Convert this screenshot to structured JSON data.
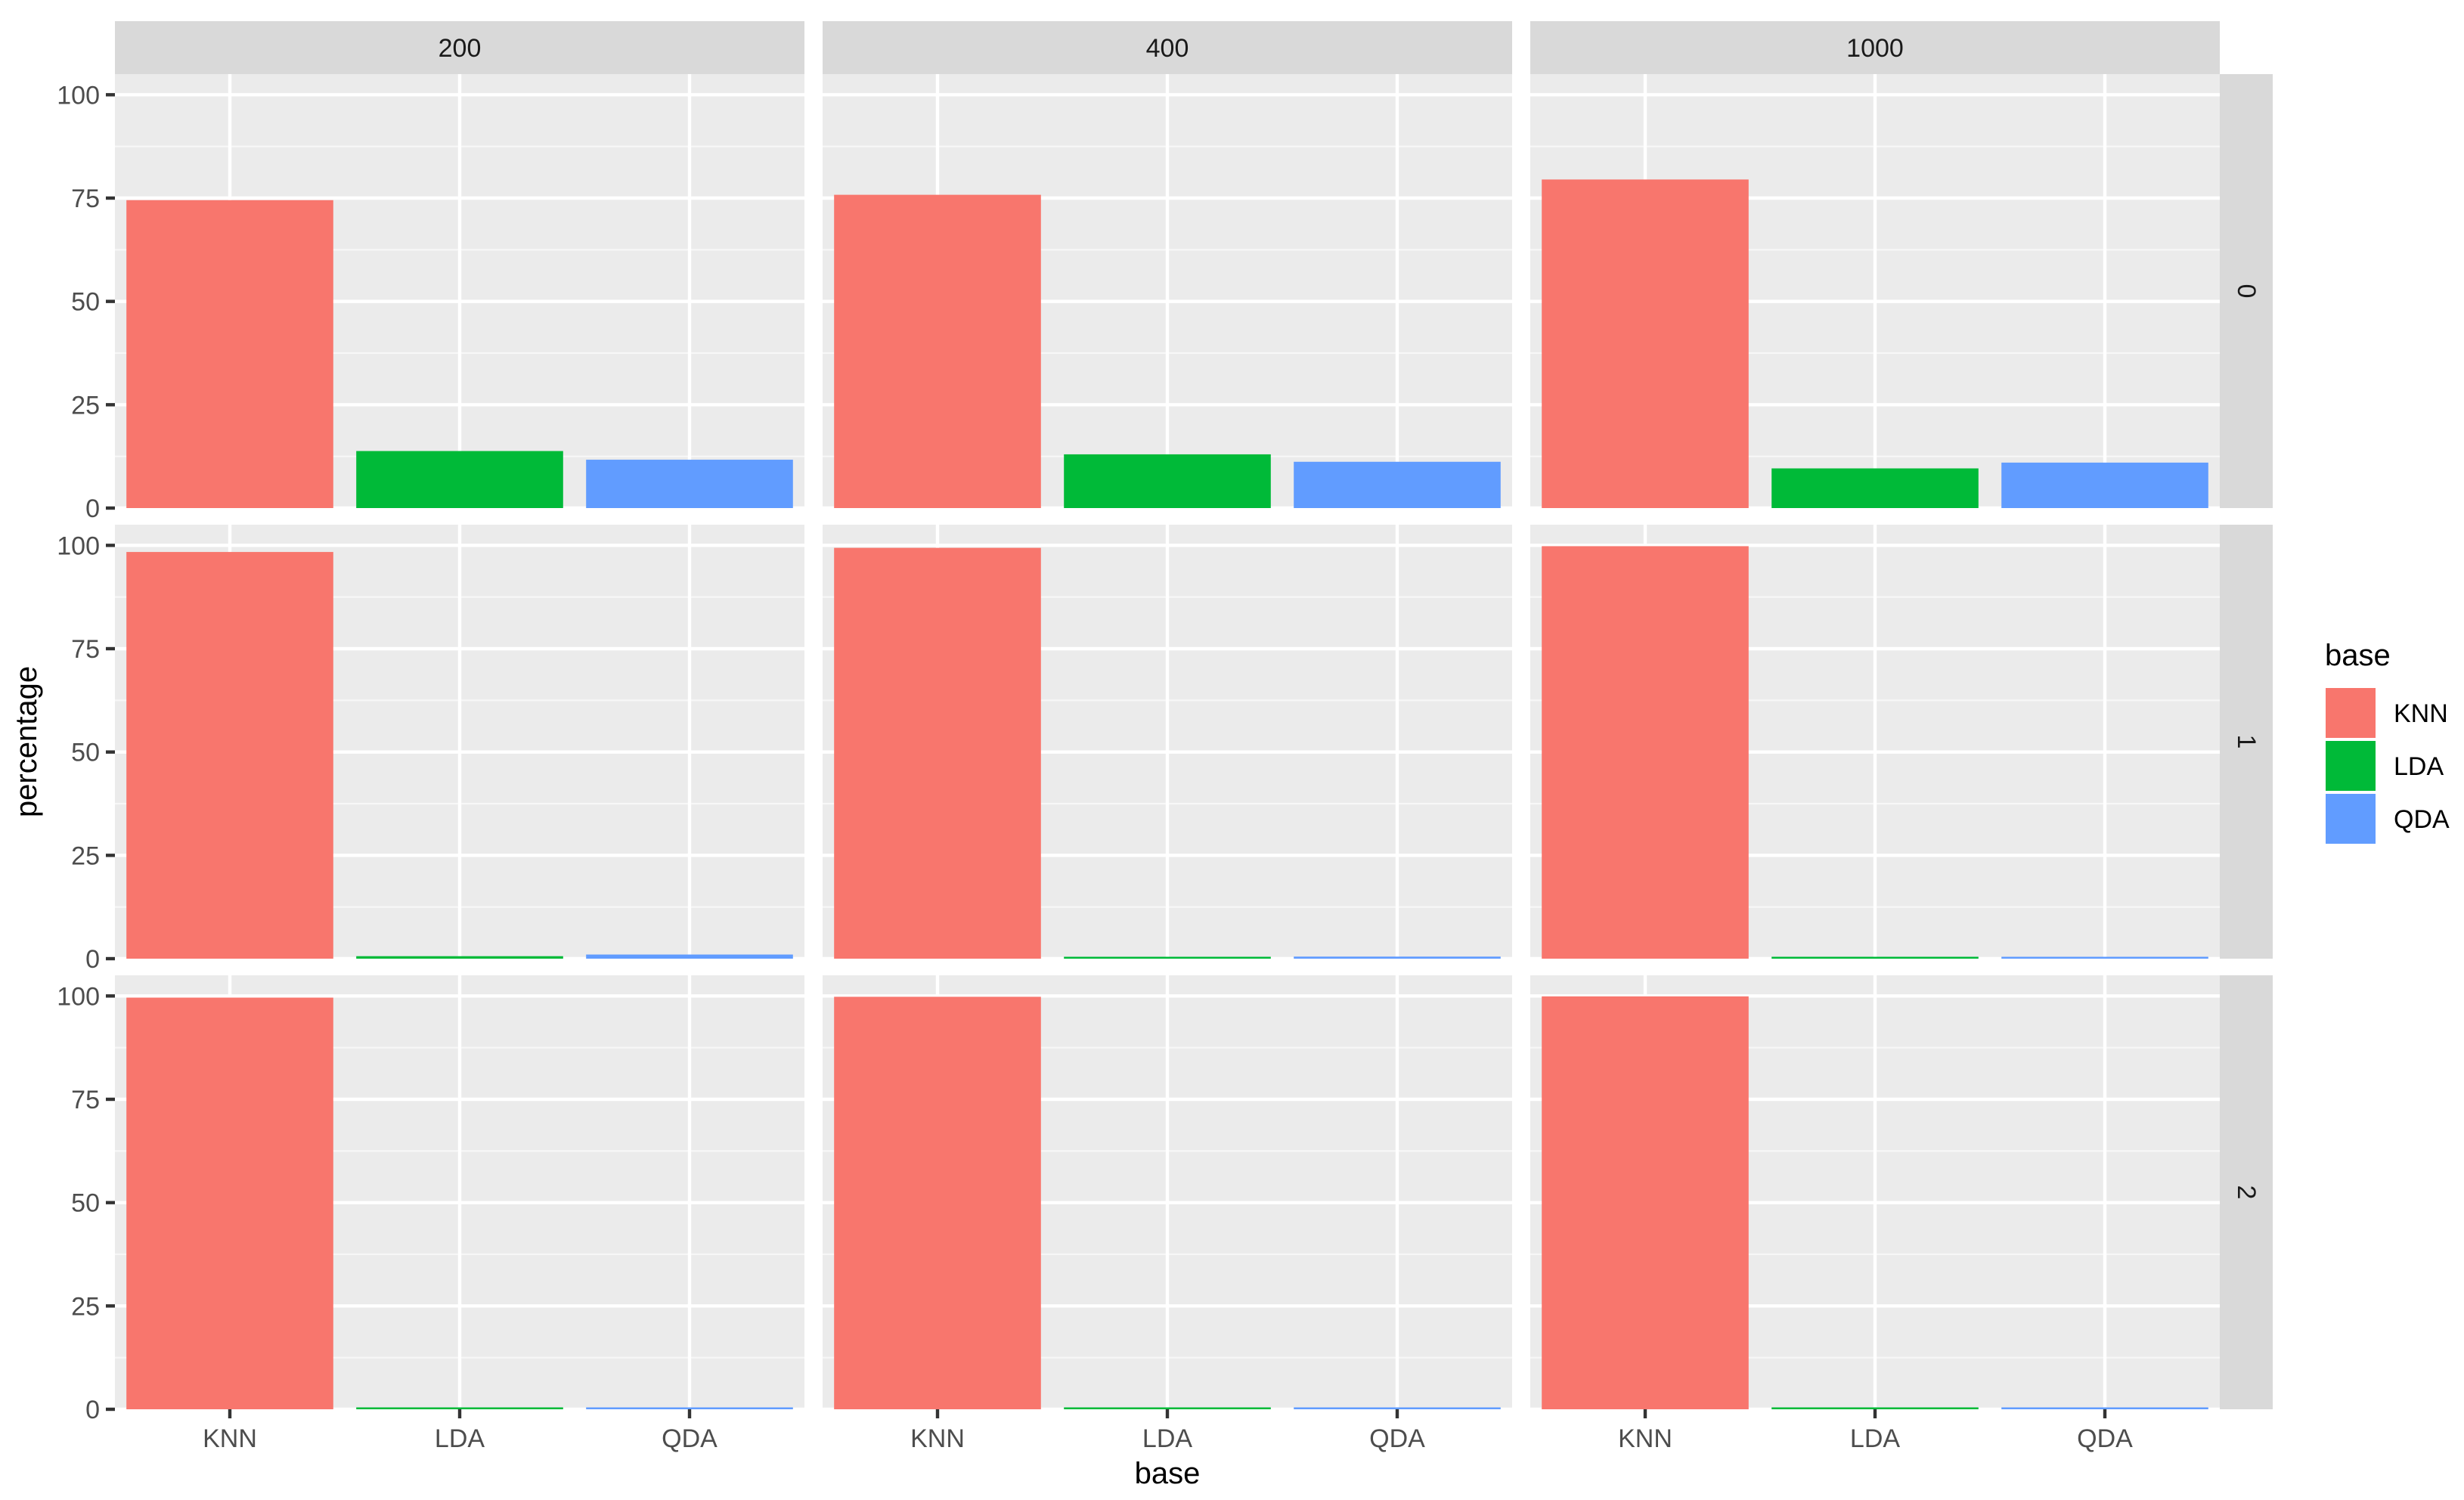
{
  "chart_data": {
    "type": "bar",
    "facet_columns": [
      "200",
      "400",
      "1000"
    ],
    "facet_rows": [
      "0",
      "1",
      "2"
    ],
    "categories": [
      "KNN",
      "LDA",
      "QDA"
    ],
    "xlabel": "base",
    "ylabel": "percentage",
    "ylim": [
      0,
      105
    ],
    "yticks": [
      "0",
      "25",
      "50",
      "75",
      "100"
    ],
    "grid": true,
    "legend": {
      "title": "base",
      "position": "right",
      "entries": [
        {
          "label": "KNN",
          "color": "#F8766D"
        },
        {
          "label": "LDA",
          "color": "#00BA38"
        },
        {
          "label": "QDA",
          "color": "#619CFF"
        }
      ]
    },
    "panels": [
      {
        "column": "200",
        "row": "0",
        "values": [
          74.5,
          13.8,
          11.7
        ]
      },
      {
        "column": "400",
        "row": "0",
        "values": [
          75.8,
          13.0,
          11.2
        ]
      },
      {
        "column": "1000",
        "row": "0",
        "values": [
          79.5,
          9.6,
          11.0
        ]
      },
      {
        "column": "200",
        "row": "1",
        "values": [
          98.4,
          0.6,
          1.0
        ]
      },
      {
        "column": "400",
        "row": "1",
        "values": [
          99.4,
          0.3,
          0.5
        ]
      },
      {
        "column": "1000",
        "row": "1",
        "values": [
          99.8,
          0.1,
          0.2
        ]
      },
      {
        "column": "200",
        "row": "2",
        "values": [
          99.6,
          0.3,
          0.2
        ]
      },
      {
        "column": "400",
        "row": "2",
        "values": [
          99.8,
          0.1,
          0.1
        ]
      },
      {
        "column": "1000",
        "row": "2",
        "values": [
          99.9,
          0.05,
          0.05
        ]
      }
    ]
  }
}
